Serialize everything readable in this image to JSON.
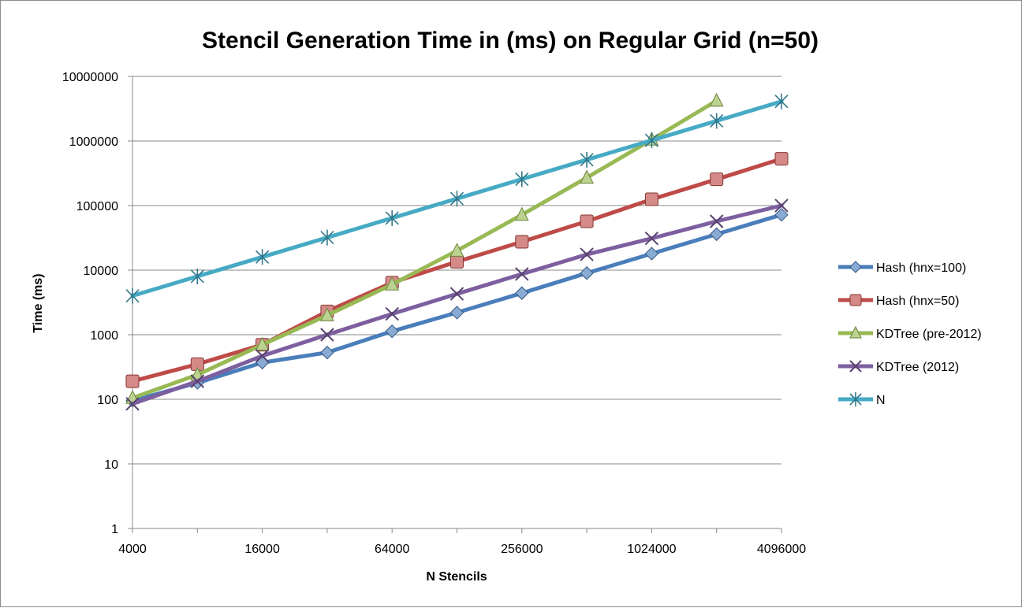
{
  "chart_data": {
    "type": "line",
    "title": "Stencil Generation Time in (ms) on Regular Grid (n=50)",
    "xlabel": "N Stencils",
    "ylabel": "Time (ms)",
    "x_scale": "log",
    "y_scale": "log",
    "xlim": [
      4000,
      4096000
    ],
    "ylim": [
      1,
      10000000
    ],
    "x_ticks": [
      "4000",
      "16000",
      "64000",
      "256000",
      "1024000",
      "4096000"
    ],
    "y_ticks": [
      "1",
      "10",
      "100",
      "1000",
      "10000",
      "100000",
      "1000000",
      "10000000"
    ],
    "grid": "horizontal",
    "legend_position": "right",
    "x": [
      4000,
      8000,
      16000,
      32000,
      64000,
      128000,
      256000,
      512000,
      1024000,
      2048000,
      4096000
    ],
    "series": [
      {
        "name": "Hash (hnx=100)",
        "color": "#4a7ebb",
        "marker": "diamond",
        "values": [
          95,
          180,
          370,
          530,
          1130,
          2200,
          4400,
          9000,
          18000,
          36000,
          72000
        ]
      },
      {
        "name": "Hash (hnx=50)",
        "color": "#be4b48",
        "marker": "square",
        "values": [
          190,
          350,
          700,
          2300,
          6400,
          13500,
          27500,
          57000,
          125000,
          255000,
          530000
        ]
      },
      {
        "name": "KDTree (pre-2012)",
        "color": "#98b954",
        "marker": "triangle",
        "values": [
          105,
          240,
          700,
          2000,
          6000,
          20000,
          72000,
          270000,
          1050000,
          4200000,
          null
        ]
      },
      {
        "name": "KDTree (2012)",
        "color": "#7d5fa0",
        "marker": "x",
        "values": [
          85,
          190,
          470,
          1000,
          2100,
          4300,
          8700,
          17500,
          31000,
          57000,
          100000
        ]
      },
      {
        "name": "N",
        "color": "#46aac5",
        "marker": "star",
        "values": [
          4000,
          8000,
          16000,
          32000,
          64000,
          128000,
          256000,
          512000,
          1024000,
          2048000,
          4096000
        ]
      }
    ]
  }
}
